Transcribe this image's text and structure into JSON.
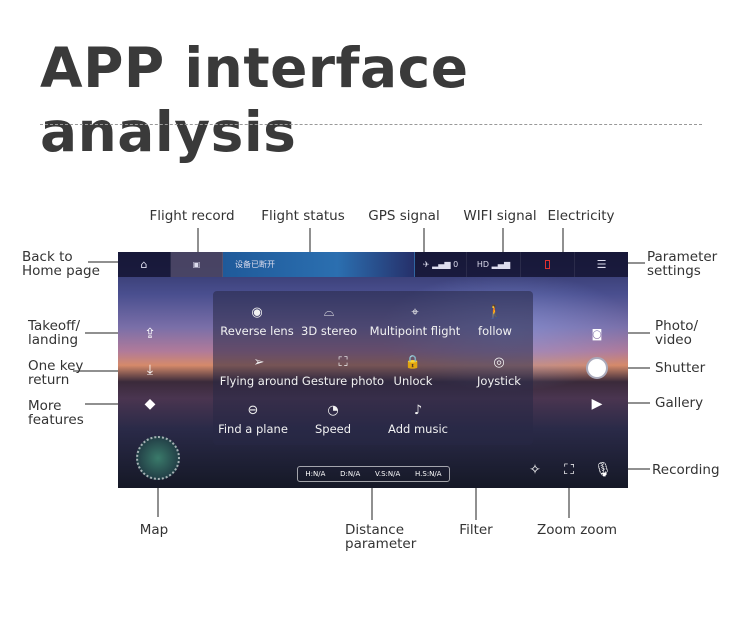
{
  "title": "APP interface analysis",
  "labels": {
    "flight_record": "Flight record",
    "flight_status": "Flight status",
    "gps_signal": "GPS signal",
    "wifi_signal": "WIFI signal",
    "electricity": "Electricity",
    "back_home": [
      "Back to",
      "Home page"
    ],
    "parameter_settings": [
      "Parameter",
      "settings"
    ],
    "takeoff": [
      "Takeoff/",
      "landing"
    ],
    "one_key_return": [
      "One key",
      "return"
    ],
    "more_features": [
      "More",
      "features"
    ],
    "photo_video": [
      "Photo/",
      "video"
    ],
    "shutter": "Shutter",
    "gallery": "Gallery",
    "recording": "Recording",
    "map": "Map",
    "distance": [
      "Distance",
      "parameter"
    ],
    "filter": "Filter",
    "zoom": "Zoom zoom"
  },
  "topbar": {
    "status": "设备已断开",
    "gps": "0",
    "wifi": "HD"
  },
  "menu": [
    "Reverse lens",
    "3D stereo",
    "Multipoint flight",
    "follow",
    "Flying around",
    "Gesture photo",
    "Unlock",
    "Joystick",
    "Find a plane",
    "Speed",
    "Add music"
  ],
  "distance": [
    "H:N/A",
    "D:N/A",
    "V.S:N/A",
    "H.S:N/A"
  ],
  "colors": {
    "battery": "#e03030",
    "title": "#3a3a3a"
  }
}
